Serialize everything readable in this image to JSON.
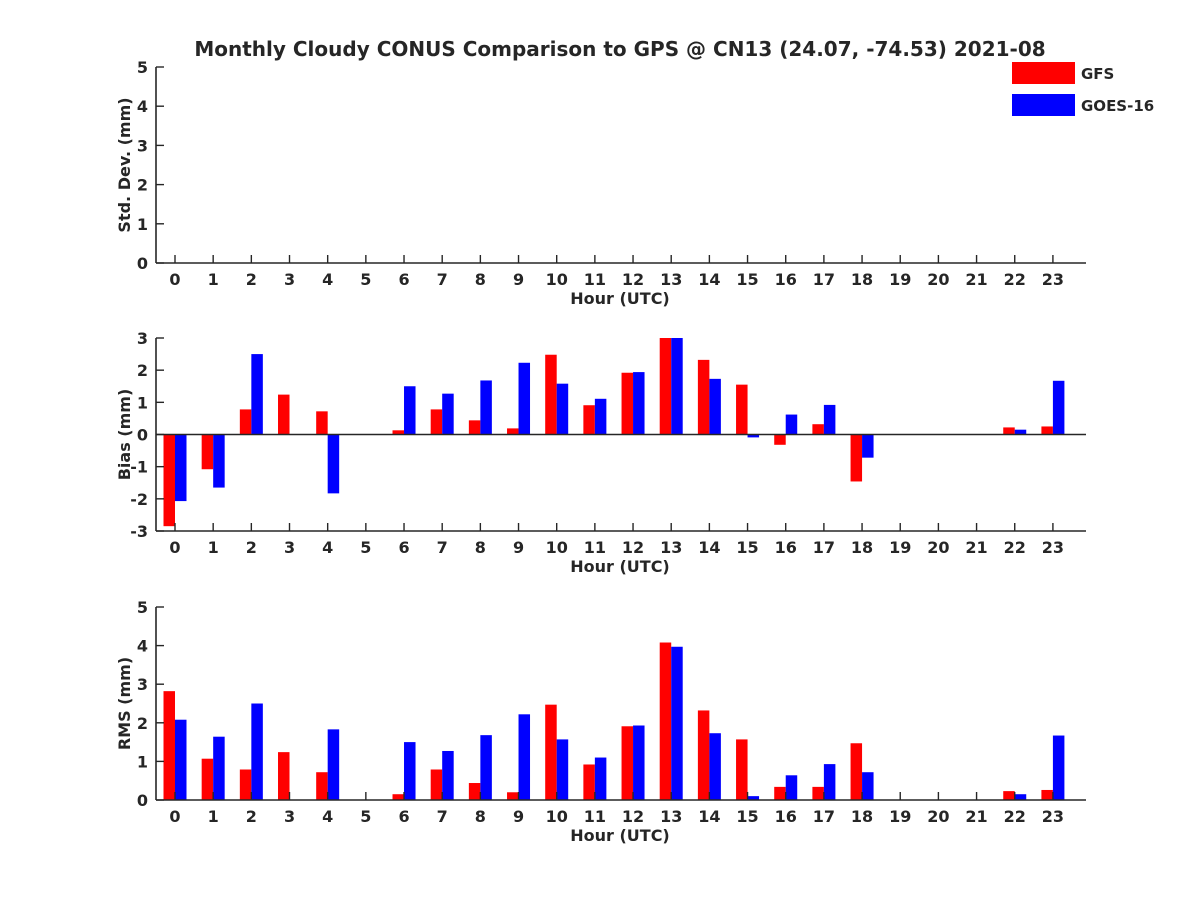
{
  "colors": {
    "gfs": "#ff0000",
    "goes": "#0000ff",
    "axis": "#262626"
  },
  "chart_data": {
    "type": "bar",
    "title": "Monthly Cloudy CONUS Comparison to GPS @ CN13 (24.07, -74.53) 2021-08",
    "legend": {
      "placement": "top-right",
      "entries": [
        "GFS",
        "GOES-16"
      ]
    },
    "categories": [
      "0",
      "1",
      "2",
      "3",
      "4",
      "5",
      "6",
      "7",
      "8",
      "9",
      "10",
      "11",
      "12",
      "13",
      "14",
      "15",
      "16",
      "17",
      "18",
      "19",
      "20",
      "21",
      "22",
      "23"
    ],
    "panels": [
      {
        "xlabel": "Hour (UTC)",
        "ylabel": "Std. Dev. (mm)",
        "ylim": [
          0,
          5
        ],
        "yticks": [
          0,
          1,
          2,
          3,
          4,
          5
        ],
        "series": [
          {
            "name": "GFS",
            "values": [
              0,
              0,
              0,
              0,
              0,
              0,
              0,
              0,
              0,
              0,
              0,
              0,
              0,
              0,
              0,
              0,
              0,
              0,
              0,
              0,
              0,
              0,
              0,
              0
            ]
          },
          {
            "name": "GOES-16",
            "values": [
              0,
              0,
              0,
              0,
              0,
              0,
              0,
              0,
              0,
              0,
              0,
              0,
              0,
              0,
              0,
              0,
              0,
              0,
              0,
              0,
              0,
              0,
              0,
              0
            ]
          }
        ]
      },
      {
        "xlabel": "Hour (UTC)",
        "ylabel": "Bias (mm)",
        "ylim": [
          -3,
          3
        ],
        "yticks": [
          -3,
          -2,
          -1,
          0,
          1,
          2,
          3
        ],
        "series": [
          {
            "name": "GFS",
            "values": [
              -2.85,
              -1.08,
              0.78,
              1.24,
              0.72,
              0,
              0.13,
              0.78,
              0.44,
              0.19,
              2.48,
              0.91,
              1.92,
              3.0,
              2.32,
              1.55,
              -0.32,
              0.32,
              -1.46,
              0,
              0,
              0,
              0.22,
              0.25
            ]
          },
          {
            "name": "GOES-16",
            "values": [
              -2.07,
              -1.65,
              2.5,
              0,
              -1.83,
              0,
              1.5,
              1.27,
              1.68,
              2.23,
              1.58,
              1.11,
              1.94,
              3.0,
              1.73,
              -0.09,
              0.62,
              0.92,
              -0.72,
              0,
              0,
              0,
              0.15,
              1.67
            ]
          }
        ]
      },
      {
        "xlabel": "Hour (UTC)",
        "ylabel": "RMS (mm)",
        "ylim": [
          0,
          5
        ],
        "yticks": [
          0,
          1,
          2,
          3,
          4,
          5
        ],
        "series": [
          {
            "name": "GFS",
            "values": [
              2.82,
              1.07,
              0.79,
              1.24,
              0.72,
              0,
              0.15,
              0.79,
              0.44,
              0.2,
              2.47,
              0.92,
              1.91,
              4.08,
              2.32,
              1.57,
              0.34,
              0.34,
              1.47,
              0,
              0,
              0,
              0.23,
              0.26
            ]
          },
          {
            "name": "GOES-16",
            "values": [
              2.08,
              1.64,
              2.5,
              0,
              1.83,
              0,
              1.5,
              1.27,
              1.68,
              2.22,
              1.57,
              1.1,
              1.93,
              3.97,
              1.73,
              0.1,
              0.64,
              0.93,
              0.72,
              0,
              0,
              0,
              0.15,
              1.67
            ]
          }
        ]
      }
    ]
  }
}
